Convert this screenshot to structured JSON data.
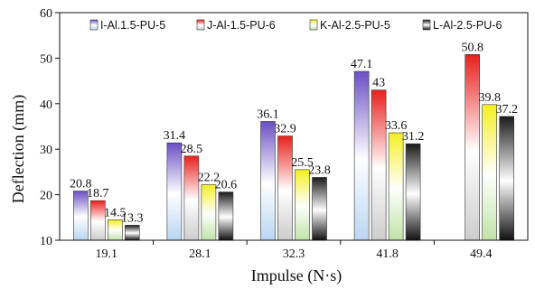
{
  "chart_data": {
    "type": "bar",
    "title": "",
    "xlabel": "Impulse (N·s)",
    "ylabel": "Deflection (mm)",
    "ylim": [
      10,
      60
    ],
    "yticks": [
      10,
      20,
      30,
      40,
      50,
      60
    ],
    "grid": false,
    "legend_position": "top",
    "categories": [
      "19.1",
      "28.1",
      "32.3",
      "41.8",
      "49.4"
    ],
    "series": [
      {
        "name": "I-Al.1.5-PU-5",
        "color": "#6a4fc4",
        "values": [
          20.8,
          31.4,
          36.1,
          47.1,
          null
        ]
      },
      {
        "name": "J-Al-1.5-PU-6",
        "color": "#e8201c",
        "values": [
          18.7,
          28.5,
          32.9,
          43,
          50.8
        ]
      },
      {
        "name": "K-Al-2.5-PU-5",
        "color": "#f4ef22",
        "values": [
          14.5,
          22.2,
          25.5,
          33.6,
          39.8
        ]
      },
      {
        "name": "L-Al-2.5-PU-6",
        "color": "#1a1a1a",
        "values": [
          13.3,
          20.6,
          23.8,
          31.2,
          37.2
        ]
      }
    ]
  }
}
